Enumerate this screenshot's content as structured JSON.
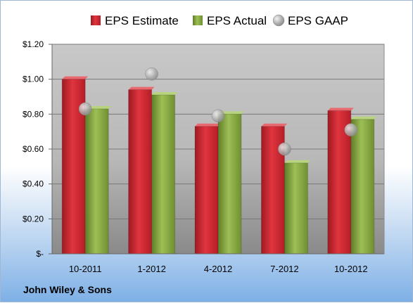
{
  "company": "John Wiley & Sons",
  "chart_data": {
    "type": "bar",
    "categories": [
      "10-2011",
      "1-2012",
      "4-2012",
      "7-2012",
      "10-2012"
    ],
    "series": [
      {
        "name": "EPS Estimate",
        "values": [
          1.0,
          0.94,
          0.73,
          0.73,
          0.82
        ],
        "color": "#c8212b",
        "kind": "bar"
      },
      {
        "name": "EPS Actual",
        "values": [
          0.83,
          0.91,
          0.8,
          0.52,
          0.77
        ],
        "color": "#7fa03d",
        "kind": "bar"
      },
      {
        "name": "EPS GAAP",
        "values": [
          0.83,
          1.03,
          0.79,
          0.6,
          0.71
        ],
        "color": "#a7a7a7",
        "kind": "marker"
      }
    ],
    "ylim": [
      0,
      1.2
    ],
    "yticks": [
      0,
      0.2,
      0.4,
      0.6,
      0.8,
      1.0,
      1.2
    ],
    "ytick_labels": [
      "$-",
      "$0.20",
      "$0.40",
      "$0.60",
      "$0.80",
      "$1.00",
      "$1.20"
    ],
    "grid": true,
    "legend_position": "top"
  }
}
